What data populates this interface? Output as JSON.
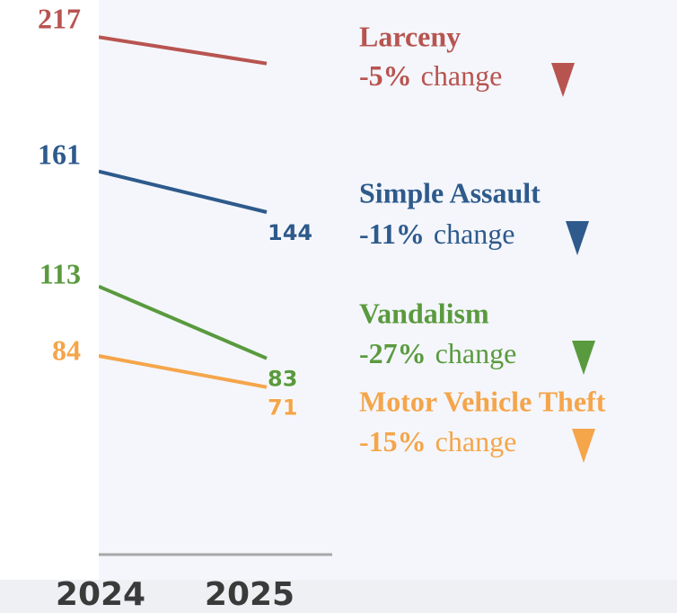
{
  "chart_data": {
    "type": "line",
    "categories": [
      "2024",
      "2025"
    ],
    "ylim": [
      60,
      225
    ],
    "change_text": "change",
    "series": [
      {
        "name": "Larceny",
        "color": "#b85450",
        "values": [
          217,
          206
        ],
        "value_labels": [
          "217",
          null
        ],
        "change": "-5%"
      },
      {
        "name": "Simple Assault",
        "color": "#2e5a8c",
        "values": [
          161,
          144
        ],
        "value_labels": [
          "161",
          "144"
        ],
        "change": "-11%"
      },
      {
        "name": "Vandalism",
        "color": "#5a9a3e",
        "values": [
          113,
          83
        ],
        "value_labels": [
          "113",
          "83"
        ],
        "change": "-27%"
      },
      {
        "name": "Motor Vehicle Theft",
        "color": "#f5a54a",
        "values": [
          84,
          71
        ],
        "value_labels": [
          "84",
          "71"
        ],
        "change": "-15%"
      }
    ]
  }
}
